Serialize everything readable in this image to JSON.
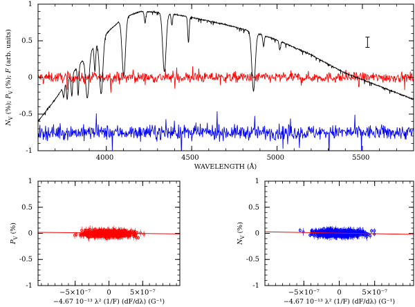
{
  "chart_data": [
    {
      "type": "line",
      "title": "",
      "xlabel": "WAVELENGTH (Å)",
      "ylabel": "N_V (%);  P_V (%);  F (arb. units)",
      "ylabel_parts": [
        "N",
        "V",
        " (%);  ",
        "P",
        "V",
        " (%);  ",
        "F",
        " (arb. units)"
      ],
      "xlim": [
        3600,
        5800
      ],
      "ylim": [
        -1,
        1
      ],
      "x_ticks": [
        4000,
        4500,
        5000,
        5500
      ],
      "x_tick_labels": [
        "4000",
        "4500",
        "5000",
        "5500"
      ],
      "y_ticks": [
        -1,
        -0.5,
        0,
        0.5,
        1
      ],
      "y_tick_labels": [
        "-1",
        "-0.5",
        "0",
        "0.5",
        "1"
      ],
      "series": [
        {
          "name": "F (flux, arb. units)",
          "color": "#000000",
          "continuum": {
            "x": [
              3600,
              3700,
              3800,
              3900,
              4000,
              4100,
              4200,
              4300,
              4400,
              4500,
              4600,
              4700,
              4800,
              4900,
              5000,
              5100,
              5200,
              5300,
              5400,
              5500,
              5600,
              5700,
              5800
            ],
            "y": [
              -0.6,
              -0.3,
              0.05,
              0.35,
              0.6,
              0.82,
              0.9,
              0.89,
              0.86,
              0.82,
              0.77,
              0.72,
              0.66,
              0.59,
              0.51,
              0.41,
              0.31,
              0.18,
              0.06,
              -0.03,
              -0.12,
              -0.21,
              -0.3
            ]
          },
          "absorption_lines": [
            {
              "x": 3750,
              "depth": 0.15
            },
            {
              "x": 3771,
              "depth": 0.25
            },
            {
              "x": 3798,
              "depth": 0.3
            },
            {
              "x": 3835,
              "depth": 0.4
            },
            {
              "x": 3889,
              "depth": 0.6
            },
            {
              "x": 3933,
              "depth": 0.35
            },
            {
              "x": 3970,
              "depth": 0.75
            },
            {
              "x": 4102,
              "depth": 0.8
            },
            {
              "x": 4227,
              "depth": 0.15
            },
            {
              "x": 4340,
              "depth": 0.8
            },
            {
              "x": 4384,
              "depth": 0.15
            },
            {
              "x": 4481,
              "depth": 0.35
            },
            {
              "x": 4862,
              "depth": 0.8
            },
            {
              "x": 4921,
              "depth": 0.15
            },
            {
              "x": 5016,
              "depth": 0.12
            }
          ]
        },
        {
          "name": "P_V (%)",
          "color": "#ff0000",
          "level": 0.0,
          "noise": 0.05,
          "n_points": 800
        },
        {
          "name": "N_V (%)",
          "color": "#0000ff",
          "level": -0.75,
          "noise": 0.07,
          "n_points": 800
        }
      ],
      "annotations": [
        {
          "type": "error-bar",
          "x": 5530,
          "y": 0.48,
          "half_height": 0.07
        }
      ]
    },
    {
      "type": "scatter",
      "title": "",
      "xlabel": "−4.67 10⁻¹³ λ² (1/F) (dF/dλ) (G⁻¹)",
      "ylabel": "P_V (%)",
      "ylabel_parts": [
        "P",
        "V",
        " (%)"
      ],
      "xlim": [
        -1.05e-06,
        1.05e-06
      ],
      "ylim": [
        -1,
        1
      ],
      "x_ticks": [
        -5e-07,
        0,
        5e-07
      ],
      "x_tick_labels": [
        "−5×10⁻⁷",
        "0",
        "5×10⁻⁷"
      ],
      "y_ticks": [
        -1,
        -0.5,
        0,
        0.5,
        1
      ],
      "y_tick_labels": [
        "-1",
        "-0.5",
        "0",
        "0.5",
        "1"
      ],
      "point_color": "#ff0000",
      "fit": {
        "color": "#ff0000",
        "x": [
          -1.05e-06,
          1.05e-06
        ],
        "y": [
          0.02,
          -0.01
        ]
      },
      "n_points": 500
    },
    {
      "type": "scatter",
      "title": "",
      "xlabel": "−4.67 10⁻¹³ λ² (1/F) (dF/dλ) (G⁻¹)",
      "ylabel": "N_V (%)",
      "ylabel_parts": [
        "N",
        "V",
        " (%)"
      ],
      "xlim": [
        -1.05e-06,
        1.05e-06
      ],
      "ylim": [
        -1,
        1
      ],
      "x_ticks": [
        -5e-07,
        0,
        5e-07
      ],
      "x_tick_labels": [
        "−5×10⁻⁷",
        "0",
        "5×10⁻⁷"
      ],
      "y_ticks": [
        -1,
        -0.5,
        0,
        0.5,
        1
      ],
      "y_tick_labels": [
        "-1",
        "-0.5",
        "0",
        "0.5",
        "1"
      ],
      "point_color": "#0000ff",
      "fit": {
        "color": "#ff0000",
        "x": [
          -1.05e-06,
          1.05e-06
        ],
        "y": [
          0.03,
          -0.02
        ]
      },
      "n_points": 500
    }
  ]
}
